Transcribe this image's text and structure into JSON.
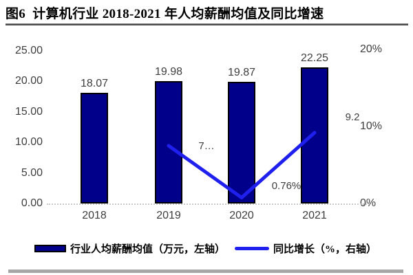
{
  "title": "图6  计算机行业 2018-2021 年人均薪酬均值及同比增速",
  "colors": {
    "bar_fill": "#00008B",
    "bar_border": "#000000",
    "line": "#2020EE",
    "tick_text": "#3d3d3d",
    "baseline": "#c9c9c9",
    "bottom_divider": "#a6a6a6"
  },
  "chart_data": {
    "type": "bar",
    "subtype": "bar+line combo, dual axis",
    "categories": [
      "2018",
      "2019",
      "2020",
      "2021"
    ],
    "series": [
      {
        "name": "行业人均薪酬均值（万元，左轴）",
        "type": "bar",
        "axis": "left",
        "values": [
          18.07,
          19.98,
          19.87,
          22.25
        ],
        "labels": [
          "18.07",
          "19.98",
          "19.87",
          "22.25"
        ],
        "color": "#00008B"
      },
      {
        "name": "同比增长（%，右轴）",
        "type": "line",
        "axis": "right",
        "values": [
          null,
          7.5,
          0.76,
          9.2
        ],
        "labels": [
          null,
          "7…",
          "0.76%",
          "9.2"
        ],
        "color": "#2020EE"
      }
    ],
    "left_axis": {
      "ticks": [
        "25.00",
        "20.00",
        "15.00",
        "10.00",
        "5.00",
        "0.00"
      ],
      "tick_values": [
        25,
        20,
        15,
        10,
        5,
        0
      ],
      "range": [
        0,
        25
      ]
    },
    "right_axis": {
      "ticks": [
        "20%",
        "10%",
        "0%"
      ],
      "tick_values": [
        20,
        10,
        0
      ],
      "range": [
        0,
        20
      ]
    },
    "grid": "off",
    "legend_position": "bottom",
    "legend": [
      {
        "swatch": "bar",
        "label": "行业人均薪酬均值（万元，左轴）"
      },
      {
        "swatch": "line",
        "label": "同比增长（%，右轴）"
      }
    ]
  }
}
